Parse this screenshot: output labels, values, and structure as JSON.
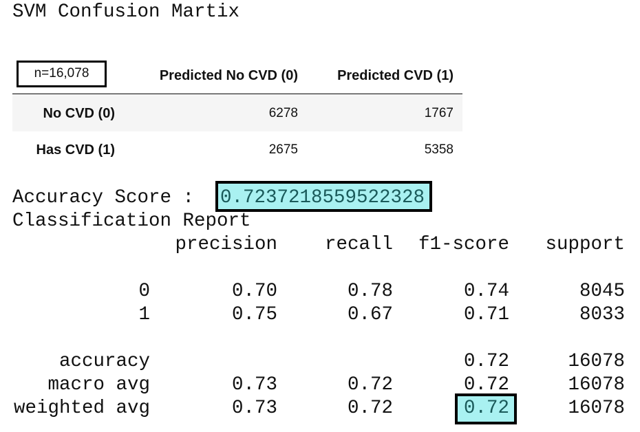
{
  "title": "SVM Confusion Martix",
  "confusion_table": {
    "corner": "n=16,078",
    "columns": [
      "Predicted No CVD (0)",
      "Predicted CVD (1)"
    ],
    "rows": [
      {
        "label": "No CVD (0)",
        "values": [
          6278,
          1767
        ]
      },
      {
        "label": "Has CVD (1)",
        "values": [
          2675,
          5358
        ]
      }
    ]
  },
  "accuracy": {
    "label": "Accuracy Score :",
    "value": "0.7237218559522328"
  },
  "report": {
    "title": "Classification Report",
    "columns": [
      "precision",
      "recall",
      "f1-score",
      "support"
    ],
    "rows": [
      {
        "label": "0",
        "values": {
          "precision": "0.70",
          "recall": "0.78",
          "f1-score": "0.74",
          "support": "8045"
        }
      },
      {
        "label": "1",
        "values": {
          "precision": "0.75",
          "recall": "0.67",
          "f1-score": "0.71",
          "support": "8033"
        }
      },
      {
        "label": "accuracy",
        "values": {
          "f1-score": "0.72",
          "support": "16078"
        }
      },
      {
        "label": "macro avg",
        "values": {
          "precision": "0.73",
          "recall": "0.72",
          "f1-score": "0.72",
          "support": "16078"
        }
      },
      {
        "label": "weighted avg",
        "values": {
          "precision": "0.73",
          "recall": "0.72",
          "f1-score": "0.72",
          "support": "16078"
        }
      }
    ]
  }
}
